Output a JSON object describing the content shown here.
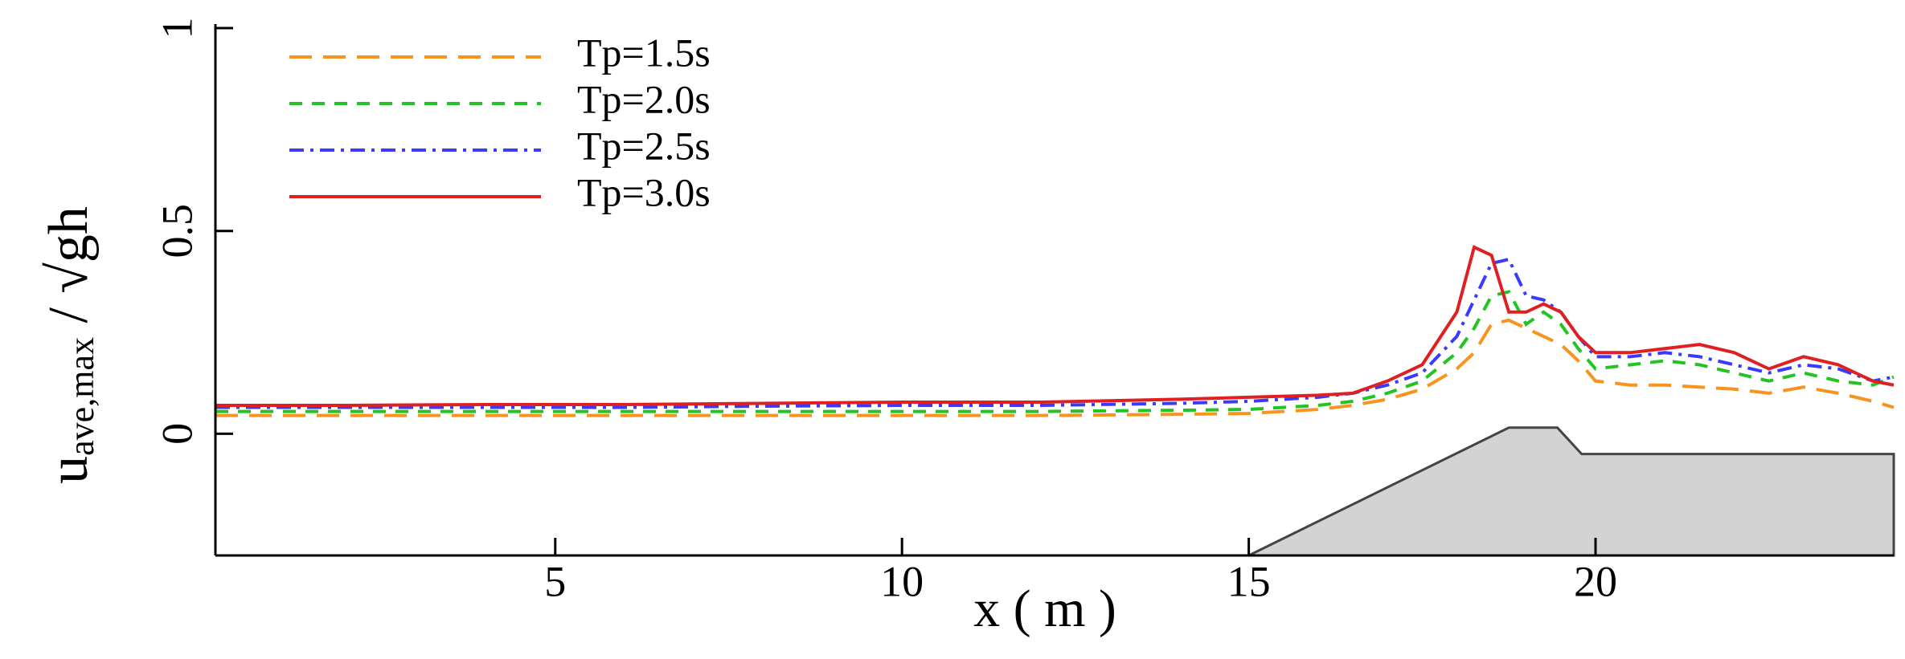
{
  "chart_data": {
    "type": "line",
    "xlabel": "x ( m )",
    "ylabel": {
      "main": "u",
      "sub": "ave,max",
      "rest": " / √gh"
    },
    "x": [
      0.1,
      2,
      4,
      6,
      8,
      10,
      12,
      14,
      15,
      16,
      16.5,
      17,
      17.5,
      18,
      18.25,
      18.5,
      18.75,
      19,
      19.25,
      19.5,
      19.75,
      20,
      20.5,
      21,
      21.5,
      22,
      22.5,
      23,
      23.5,
      24,
      24.3
    ],
    "series": [
      {
        "name": "Tp=1.5s",
        "color": "#f7931e",
        "dash": "dashed",
        "values": [
          0.045,
          0.045,
          0.045,
          0.045,
          0.045,
          0.045,
          0.045,
          0.048,
          0.05,
          0.06,
          0.07,
          0.085,
          0.11,
          0.16,
          0.2,
          0.27,
          0.28,
          0.26,
          0.24,
          0.22,
          0.18,
          0.13,
          0.12,
          0.12,
          0.115,
          0.11,
          0.1,
          0.115,
          0.1,
          0.08,
          0.065
        ]
      },
      {
        "name": "Tp=2.0s",
        "color": "#22c322",
        "dash": "short-dashed",
        "values": [
          0.055,
          0.055,
          0.055,
          0.055,
          0.055,
          0.055,
          0.055,
          0.058,
          0.06,
          0.07,
          0.08,
          0.1,
          0.13,
          0.2,
          0.26,
          0.34,
          0.35,
          0.27,
          0.3,
          0.27,
          0.21,
          0.16,
          0.17,
          0.18,
          0.17,
          0.15,
          0.13,
          0.15,
          0.13,
          0.12,
          0.14
        ]
      },
      {
        "name": "Tp=2.5s",
        "color": "#3a3aff",
        "dash": "dash-dot",
        "values": [
          0.065,
          0.065,
          0.065,
          0.065,
          0.068,
          0.07,
          0.07,
          0.075,
          0.08,
          0.09,
          0.1,
          0.12,
          0.15,
          0.24,
          0.33,
          0.42,
          0.43,
          0.34,
          0.33,
          0.3,
          0.24,
          0.19,
          0.19,
          0.2,
          0.19,
          0.17,
          0.15,
          0.17,
          0.16,
          0.13,
          0.14
        ]
      },
      {
        "name": "Tp=3.0s",
        "color": "#e02020",
        "dash": "solid",
        "values": [
          0.07,
          0.07,
          0.072,
          0.072,
          0.075,
          0.078,
          0.078,
          0.085,
          0.09,
          0.095,
          0.1,
          0.13,
          0.17,
          0.3,
          0.46,
          0.44,
          0.3,
          0.3,
          0.32,
          0.3,
          0.24,
          0.2,
          0.2,
          0.21,
          0.22,
          0.2,
          0.16,
          0.19,
          0.17,
          0.13,
          0.12
        ]
      }
    ],
    "bathymetry": {
      "color": "#d3d3d3",
      "x": [
        15,
        18.75,
        19.45,
        19.8,
        24.3
      ],
      "y": [
        -0.3,
        0.015,
        0.015,
        -0.05,
        -0.05
      ]
    },
    "xlim": [
      0.1,
      24.3
    ],
    "ylim": [
      -0.3,
      1
    ],
    "xticks": [
      5,
      10,
      15,
      20
    ],
    "yticks": [
      0,
      0.5,
      1
    ],
    "legend": "upper left"
  }
}
